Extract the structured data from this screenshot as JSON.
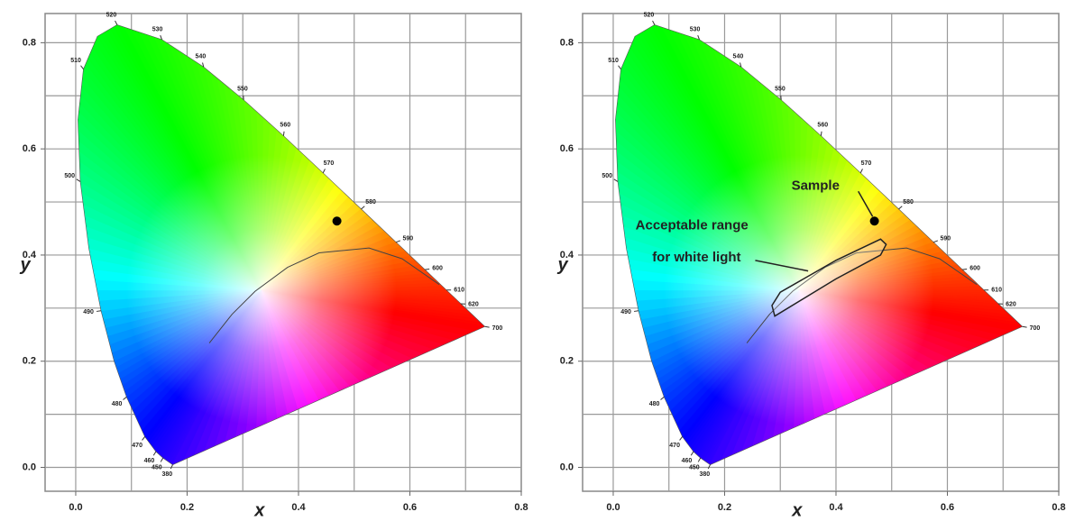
{
  "chart_data": [
    {
      "type": "scatter",
      "xlabel": "x",
      "ylabel": "y",
      "xlim": [
        -0.055,
        0.8
      ],
      "ylim": [
        -0.045,
        0.855
      ],
      "xticks": [
        {
          "value": 0,
          "label": "0.0"
        },
        0.2,
        0.4,
        0.6,
        0.8
      ],
      "yticks": [
        {
          "value": 0,
          "label": "0.0"
        },
        0.2,
        0.4,
        0.6,
        0.8
      ],
      "xminor": [
        0.1,
        0.3,
        0.5,
        0.7
      ],
      "yminor": [
        0.1,
        0.3,
        0.5,
        0.7
      ],
      "grid": true,
      "locus": {
        "labels": [
          "380",
          "450",
          "460",
          "470",
          "480",
          null,
          "490",
          null,
          "500",
          null,
          "510",
          null,
          "520",
          "530",
          "540",
          "550",
          "560",
          "570",
          "580",
          "590",
          "600",
          "610",
          "620",
          "700"
        ],
        "x": [
          0.1741,
          0.1566,
          0.144,
          0.1241,
          0.0913,
          0.0687,
          0.0454,
          0.0235,
          0.0082,
          0.0039,
          0.0139,
          0.0389,
          0.0743,
          0.1547,
          0.2296,
          0.3016,
          0.3731,
          0.4441,
          0.5125,
          0.5752,
          0.627,
          0.6658,
          0.6915,
          0.7347
        ],
        "y": [
          0.005,
          0.0177,
          0.0297,
          0.0578,
          0.1327,
          0.2007,
          0.295,
          0.4127,
          0.5384,
          0.6548,
          0.7502,
          0.812,
          0.8338,
          0.8059,
          0.7543,
          0.6923,
          0.6245,
          0.5547,
          0.4866,
          0.4242,
          0.3725,
          0.334,
          0.3083,
          0.2653
        ]
      },
      "planckian": {
        "x": [
          0.2399,
          0.2807,
          0.3221,
          0.3805,
          0.4369,
          0.5267,
          0.5857,
          0.6528
        ],
        "y": [
          0.2342,
          0.2883,
          0.3318,
          0.3768,
          0.4041,
          0.4133,
          0.3931,
          0.3444
        ]
      },
      "sample": {
        "x": 0.469,
        "y": 0.464,
        "color": "#000000"
      }
    },
    {
      "type": "scatter",
      "xlabel": "x",
      "ylabel": "y",
      "xlim": [
        -0.055,
        0.8
      ],
      "ylim": [
        -0.045,
        0.855
      ],
      "xticks": [
        {
          "value": 0,
          "label": "0.0"
        },
        0.2,
        0.4,
        0.6,
        0.8
      ],
      "yticks": [
        {
          "value": 0,
          "label": "0.0"
        },
        0.2,
        0.4,
        0.6,
        0.8
      ],
      "xminor": [
        0.1,
        0.3,
        0.5,
        0.7
      ],
      "yminor": [
        0.1,
        0.3,
        0.5,
        0.7
      ],
      "grid": true,
      "locus": {
        "labels": [
          "380",
          "450",
          "460",
          "470",
          "480",
          null,
          "490",
          null,
          "500",
          null,
          "510",
          null,
          "520",
          "530",
          "540",
          "550",
          "560",
          "570",
          "580",
          "590",
          "600",
          "610",
          "620",
          "700"
        ],
        "x": [
          0.1741,
          0.1566,
          0.144,
          0.1241,
          0.0913,
          0.0687,
          0.0454,
          0.0235,
          0.0082,
          0.0039,
          0.0139,
          0.0389,
          0.0743,
          0.1547,
          0.2296,
          0.3016,
          0.3731,
          0.4441,
          0.5125,
          0.5752,
          0.627,
          0.6658,
          0.6915,
          0.7347
        ],
        "y": [
          0.005,
          0.0177,
          0.0297,
          0.0578,
          0.1327,
          0.2007,
          0.295,
          0.4127,
          0.5384,
          0.6548,
          0.7502,
          0.812,
          0.8338,
          0.8059,
          0.7543,
          0.6923,
          0.6245,
          0.5547,
          0.4866,
          0.4242,
          0.3725,
          0.334,
          0.3083,
          0.2653
        ]
      },
      "planckian": {
        "x": [
          0.2399,
          0.2807,
          0.3221,
          0.3805,
          0.4369,
          0.5267,
          0.5857,
          0.6528
        ],
        "y": [
          0.2342,
          0.2883,
          0.3318,
          0.3768,
          0.4041,
          0.4133,
          0.3931,
          0.3444
        ]
      },
      "sample": {
        "x": 0.469,
        "y": 0.464,
        "color": "#000000"
      },
      "acceptable_range": {
        "x": [
          0.285,
          0.3,
          0.4,
          0.48,
          0.49,
          0.48,
          0.4,
          0.29
        ],
        "y": [
          0.305,
          0.33,
          0.39,
          0.43,
          0.42,
          0.4,
          0.355,
          0.285
        ]
      },
      "annotations": {
        "sample_label": "Sample",
        "range_label": [
          "Acceptable range",
          "for white light"
        ]
      }
    }
  ]
}
